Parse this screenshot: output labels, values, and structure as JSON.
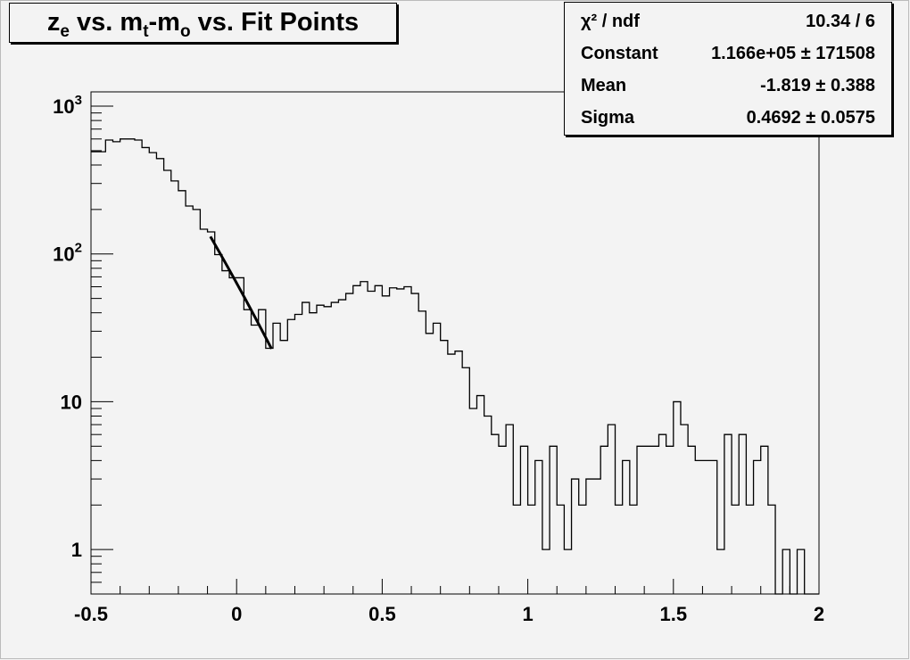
{
  "chart_data": {
    "type": "histogram",
    "title_parts": [
      {
        "text": "z",
        "sub": false
      },
      {
        "text": "e",
        "sub": true
      },
      {
        "text": " vs. m",
        "sub": false
      },
      {
        "text": "t",
        "sub": true
      },
      {
        "text": "-m",
        "sub": false
      },
      {
        "text": "o",
        "sub": true
      },
      {
        "text": " vs. Fit Points",
        "sub": false
      }
    ],
    "xlim": [
      -0.5,
      2
    ],
    "ylim": [
      0.5,
      1250
    ],
    "y_scale": "log",
    "x_ticks": [
      "-0.5",
      "0",
      "0.5",
      "1",
      "1.5",
      "2"
    ],
    "x_tick_values": [
      -0.5,
      0,
      0.5,
      1,
      1.5,
      2
    ],
    "y_ticks": [
      {
        "value": 1,
        "base": "1",
        "exp": ""
      },
      {
        "value": 10,
        "base": "10",
        "exp": ""
      },
      {
        "value": 100,
        "base": "10",
        "exp": "2"
      },
      {
        "value": 1000,
        "base": "10",
        "exp": "3"
      }
    ],
    "bin_count": 100,
    "bin_contents": [
      492,
      492,
      590,
      575,
      600,
      600,
      590,
      525,
      485,
      442,
      368,
      312,
      268,
      211,
      200,
      147,
      141,
      99,
      77,
      69,
      69,
      42,
      33,
      42,
      23,
      34,
      26,
      36,
      39,
      47,
      40,
      45,
      44,
      47,
      49,
      54,
      61,
      65,
      56,
      61,
      52,
      59,
      58,
      60,
      54,
      41,
      29,
      34,
      26,
      21,
      22,
      17,
      9,
      11,
      8,
      6,
      5,
      7,
      2,
      5,
      2,
      4,
      1,
      5,
      2,
      1,
      3,
      2,
      3,
      3,
      5,
      7,
      2,
      4,
      2,
      5,
      5,
      5,
      6,
      5,
      10,
      7,
      5,
      4,
      4,
      4,
      1,
      6,
      2,
      6,
      2,
      4,
      5,
      2,
      0,
      1,
      0,
      1,
      0,
      0
    ],
    "fit": {
      "function": "gaus",
      "range": [
        -0.09,
        0.12
      ],
      "constant": 116600,
      "mean": -1.819,
      "sigma": 0.4692
    },
    "grid": false,
    "legend": "top-right",
    "stats": [
      {
        "label": "χ² / ndf",
        "value": "10.34 / 6"
      },
      {
        "label": "Constant",
        "value": "1.166e+05 ± 171508"
      },
      {
        "label": "Mean",
        "value": "-1.819 ± 0.388"
      },
      {
        "label": "Sigma",
        "value": "0.4692 ± 0.0575"
      }
    ]
  }
}
